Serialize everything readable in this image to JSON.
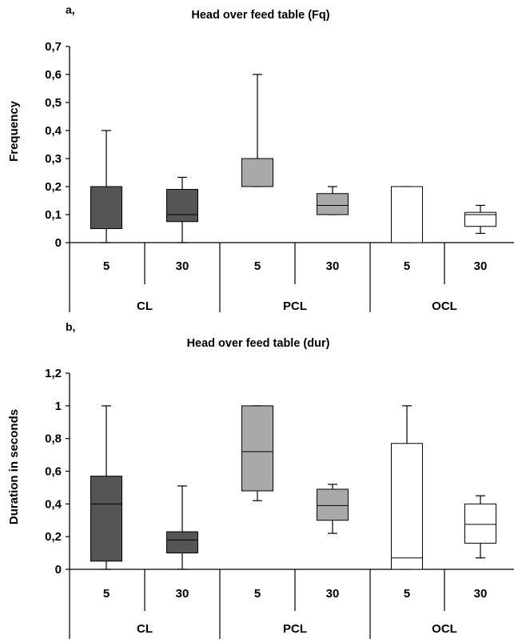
{
  "chart_data": [
    {
      "type": "box",
      "panel_label": "a,",
      "title": "Head over feed table (Fq)",
      "ylabel": "Frequency",
      "ylim": [
        0,
        0.7
      ],
      "yticks": [
        "0",
        "0,1",
        "0,2",
        "0,3",
        "0,4",
        "0,5",
        "0,6",
        "0,7"
      ],
      "groups": [
        "CL",
        "PCL",
        "OCL"
      ],
      "subcategories": [
        "5",
        "30"
      ],
      "boxes": [
        {
          "group": "CL",
          "sub": "5",
          "min": 0,
          "q1": 0.05,
          "median": 0.2,
          "q3": 0.2,
          "max": 0.4,
          "color": "#555555"
        },
        {
          "group": "CL",
          "sub": "30",
          "min": 0,
          "q1": 0.075,
          "median": 0.1,
          "q3": 0.19,
          "max": 0.233,
          "color": "#555555"
        },
        {
          "group": "PCL",
          "sub": "5",
          "min": 0.2,
          "q1": 0.2,
          "median": 0.2,
          "q3": 0.3,
          "max": 0.6,
          "color": "#a9a9a9"
        },
        {
          "group": "PCL",
          "sub": "30",
          "min": 0.1,
          "q1": 0.1,
          "median": 0.133,
          "q3": 0.175,
          "max": 0.2,
          "color": "#a9a9a9"
        },
        {
          "group": "OCL",
          "sub": "5",
          "min": 0,
          "q1": 0,
          "median": 0.2,
          "q3": 0.2,
          "max": 0.2,
          "color": "#ffffff"
        },
        {
          "group": "OCL",
          "sub": "30",
          "min": 0.033,
          "q1": 0.058,
          "median": 0.1,
          "q3": 0.108,
          "max": 0.133,
          "color": "#ffffff"
        }
      ]
    },
    {
      "type": "box",
      "panel_label": "b,",
      "title": "Head over feed table (dur)",
      "ylabel": "Duration in seconds",
      "ylim": [
        0,
        1.2
      ],
      "yticks": [
        "0",
        "0,2",
        "0,4",
        "0,6",
        "0,8",
        "1",
        "1,2"
      ],
      "groups": [
        "CL",
        "PCL",
        "OCL"
      ],
      "subcategories": [
        "5",
        "30"
      ],
      "boxes": [
        {
          "group": "CL",
          "sub": "5",
          "min": 0,
          "q1": 0.05,
          "median": 0.4,
          "q3": 0.57,
          "max": 1.0,
          "color": "#555555"
        },
        {
          "group": "CL",
          "sub": "30",
          "min": 0,
          "q1": 0.1,
          "median": 0.18,
          "q3": 0.23,
          "max": 0.51,
          "color": "#555555"
        },
        {
          "group": "PCL",
          "sub": "5",
          "min": 0.42,
          "q1": 0.48,
          "median": 0.72,
          "q3": 1.0,
          "max": 1.0,
          "color": "#a9a9a9"
        },
        {
          "group": "PCL",
          "sub": "30",
          "min": 0.22,
          "q1": 0.3,
          "median": 0.39,
          "q3": 0.49,
          "max": 0.52,
          "color": "#a9a9a9"
        },
        {
          "group": "OCL",
          "sub": "5",
          "min": 0,
          "q1": 0,
          "median": 0.07,
          "q3": 0.77,
          "max": 1.0,
          "color": "#ffffff"
        },
        {
          "group": "OCL",
          "sub": "30",
          "min": 0.07,
          "q1": 0.16,
          "median": 0.275,
          "q3": 0.4,
          "max": 0.45,
          "color": "#ffffff"
        }
      ]
    }
  ]
}
